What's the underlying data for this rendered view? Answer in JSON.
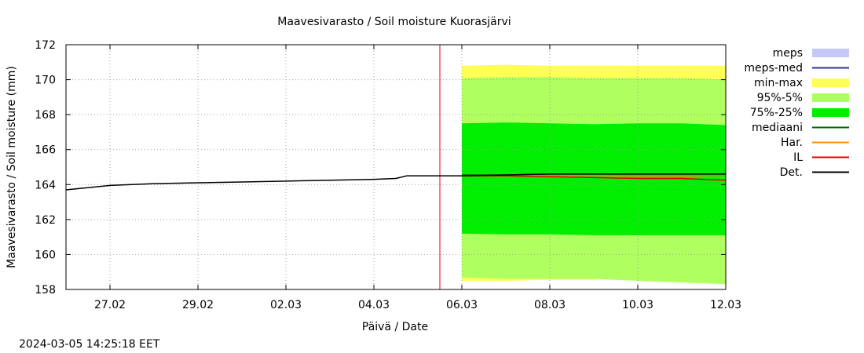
{
  "chart_data": {
    "type": "area",
    "title": "Maavesivarasto / Soil moisture   Kuorasjärvi",
    "xlabel": "Päivä / Date",
    "ylabel": "Maavesivarasto / Soil moisture (mm)",
    "footer": "2024-03-05 14:25:18 EET",
    "x_unit": "day",
    "xlim": [
      "2024-02-26 00:00",
      "2024-03-12 00:00"
    ],
    "ylim": [
      158,
      172
    ],
    "grid": true,
    "legend_position": "right",
    "y_ticks": [
      "158",
      "160",
      "162",
      "164",
      "166",
      "168",
      "170",
      "172"
    ],
    "x_ticks": [
      {
        "date": "2024-02-27",
        "label": "27.02"
      },
      {
        "date": "2024-02-29",
        "label": "29.02"
      },
      {
        "date": "2024-03-02",
        "label": "02.03"
      },
      {
        "date": "2024-03-04",
        "label": "04.03"
      },
      {
        "date": "2024-03-06",
        "label": "06.03"
      },
      {
        "date": "2024-03-08",
        "label": "08.03"
      },
      {
        "date": "2024-03-10",
        "label": "10.03"
      },
      {
        "date": "2024-03-12",
        "label": "12.03"
      }
    ],
    "forecast_marker_date": "2024-03-05 12:00",
    "legend": [
      {
        "label": "meps",
        "kind": "fill",
        "color": "#c8c8f8"
      },
      {
        "label": "meps-med",
        "kind": "line",
        "color": "#3030a0"
      },
      {
        "label": "min-max",
        "kind": "fill",
        "color": "#ffff55"
      },
      {
        "label": "95%-5%",
        "kind": "fill",
        "color": "#b0ff60"
      },
      {
        "label": "75%-25%",
        "kind": "fill",
        "color": "#00ee00"
      },
      {
        "label": "mediaani",
        "kind": "line",
        "color": "#006400"
      },
      {
        "label": "Har.",
        "kind": "line",
        "color": "#ff8c00"
      },
      {
        "label": "IL",
        "kind": "line",
        "color": "#e00000"
      },
      {
        "label": "Det.",
        "kind": "line",
        "color": "#000000"
      }
    ],
    "observed": {
      "name": "Det.",
      "color": "#000000",
      "x": [
        "2024-02-26 00:00",
        "2024-02-27 00:00",
        "2024-02-28 00:00",
        "2024-02-29 00:00",
        "2024-03-01 00:00",
        "2024-03-02 00:00",
        "2024-03-03 00:00",
        "2024-03-04 00:00",
        "2024-03-04 12:00",
        "2024-03-04 18:00",
        "2024-03-05 12:00",
        "2024-03-06 00:00"
      ],
      "y": [
        163.7,
        163.95,
        164.05,
        164.1,
        164.15,
        164.2,
        164.25,
        164.3,
        164.35,
        164.5,
        164.5,
        164.5
      ]
    },
    "forecast_bands": {
      "x": [
        "2024-03-06 00:00",
        "2024-03-07 00:00",
        "2024-03-08 00:00",
        "2024-03-09 00:00",
        "2024-03-10 00:00",
        "2024-03-11 00:00",
        "2024-03-12 00:00"
      ],
      "min_max": {
        "color": "#ffff55",
        "upper": [
          170.8,
          170.85,
          170.8,
          170.8,
          170.8,
          170.8,
          170.8
        ],
        "lower": [
          158.5,
          158.5,
          158.55,
          158.55,
          158.8,
          159.0,
          159.0
        ]
      },
      "p95_p5": {
        "color": "#b0ff60",
        "upper": [
          170.1,
          170.15,
          170.15,
          170.1,
          170.1,
          170.1,
          170.0
        ],
        "lower": [
          158.7,
          158.6,
          158.6,
          158.6,
          158.5,
          158.4,
          158.3
        ]
      },
      "p75_p25": {
        "color": "#00ee00",
        "upper": [
          167.5,
          167.55,
          167.5,
          167.45,
          167.5,
          167.5,
          167.4
        ],
        "lower": [
          161.2,
          161.15,
          161.15,
          161.1,
          161.1,
          161.1,
          161.1
        ]
      }
    },
    "forecast_lines": [
      {
        "name": "mediaani",
        "color": "#006400",
        "width": 1.5,
        "y": [
          164.55,
          164.55,
          164.6,
          164.6,
          164.6,
          164.6,
          164.6
        ]
      },
      {
        "name": "Har.",
        "color": "#ff8c00",
        "width": 1.2,
        "y": [
          164.5,
          164.5,
          164.5,
          164.5,
          164.45,
          164.45,
          164.4
        ]
      },
      {
        "name": "IL",
        "color": "#e00000",
        "width": 1.5,
        "y": [
          164.5,
          164.5,
          164.45,
          164.4,
          164.35,
          164.35,
          164.25
        ]
      },
      {
        "name": "Det.",
        "color": "#000000",
        "width": 1.5,
        "y": [
          164.5,
          164.55,
          164.6,
          164.6,
          164.6,
          164.6,
          164.6
        ]
      }
    ]
  }
}
